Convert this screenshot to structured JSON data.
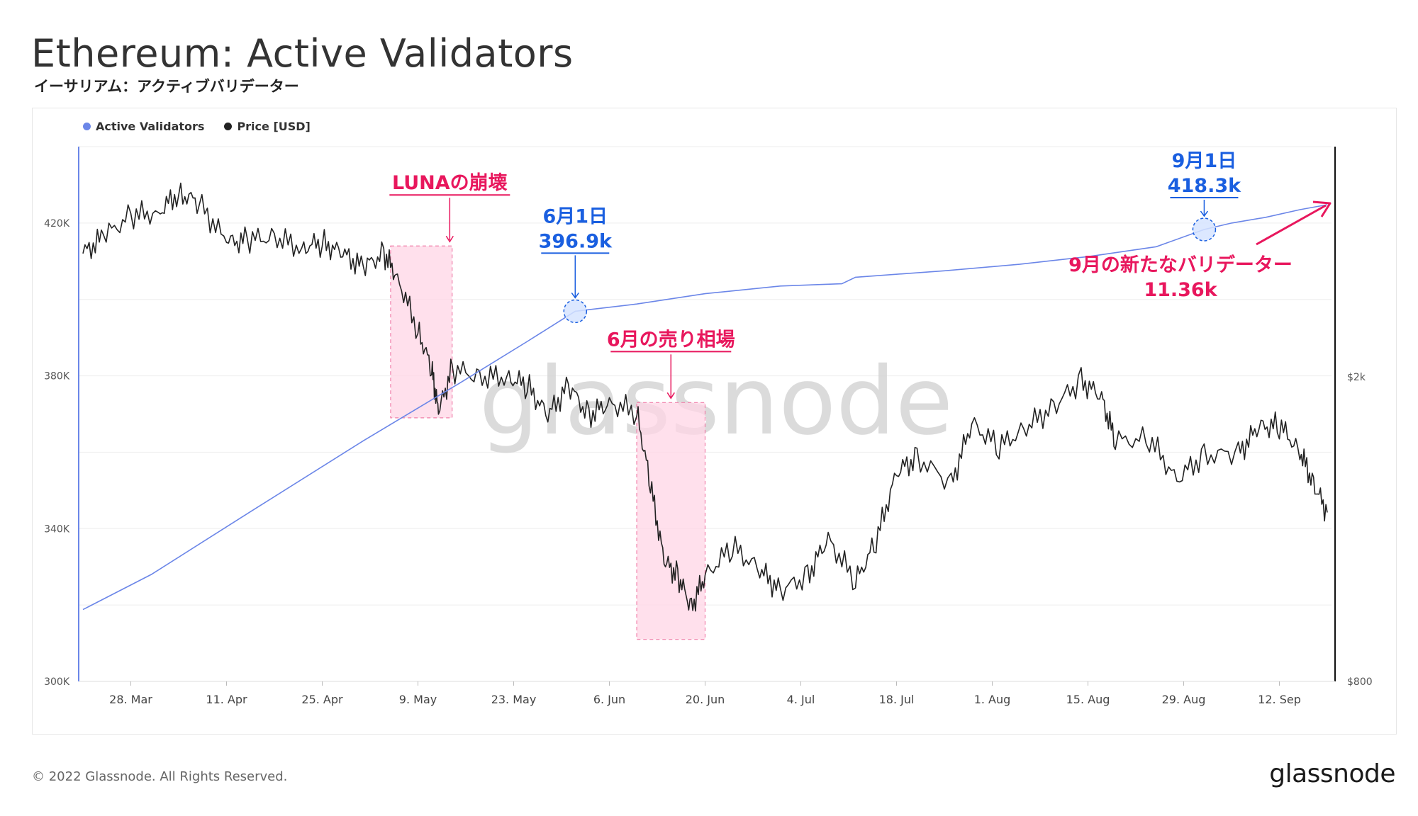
{
  "header": {
    "title": "Ethereum: Active Validators",
    "subtitle": "イーサリアム：アクティブバリデーター"
  },
  "footer": {
    "copyright": "© 2022 Glassnode. All Rights Reserved.",
    "logo": "glassnode"
  },
  "watermark": "glassnode",
  "colors": {
    "validators": "#6b86e8",
    "price": "#222222",
    "highlight_fill": "#ffd6e6",
    "highlight_border": "#f080aa",
    "annotation_pink": "#e8175d",
    "annotation_blue": "#1a5fe0"
  },
  "chart_data": {
    "type": "line",
    "legend": [
      {
        "name": "Active Validators",
        "color": "#6b86e8"
      },
      {
        "name": "Price [USD]",
        "color": "#222222"
      }
    ],
    "x_ticks": [
      "28. Mar",
      "11. Apr",
      "25. Apr",
      "9. May",
      "23. May",
      "6. Jun",
      "20. Jun",
      "4. Jul",
      "18. Jul",
      "1. Aug",
      "15. Aug",
      "29. Aug",
      "12. Sep"
    ],
    "x_range": [
      "2022-03-21",
      "2022-09-19"
    ],
    "y_left": {
      "ticks": [
        "300K",
        "340K",
        "380K",
        "420K"
      ],
      "tick_values": [
        300000,
        340000,
        380000,
        420000
      ],
      "range": [
        300000,
        440000
      ]
    },
    "y_right": {
      "ticks": [
        "$800",
        "$2k"
      ],
      "tick_values": [
        800,
        2000
      ],
      "scale": "log",
      "range": [
        800,
        4000
      ]
    },
    "series": [
      {
        "name": "Active Validators",
        "axis": "left",
        "points": [
          [
            "2022-03-21",
            318800
          ],
          [
            "2022-03-31",
            328000
          ],
          [
            "2022-04-15",
            345000
          ],
          [
            "2022-05-01",
            363000
          ],
          [
            "2022-05-15",
            378000
          ],
          [
            "2022-05-25",
            389000
          ],
          [
            "2022-06-01",
            396900
          ],
          [
            "2022-06-10",
            398800
          ],
          [
            "2022-06-20",
            401500
          ],
          [
            "2022-07-01",
            403500
          ],
          [
            "2022-07-10",
            404100
          ],
          [
            "2022-07-12",
            405800
          ],
          [
            "2022-07-25",
            407500
          ],
          [
            "2022-08-05",
            409200
          ],
          [
            "2022-08-15",
            411200
          ],
          [
            "2022-08-25",
            413800
          ],
          [
            "2022-09-01",
            418300
          ],
          [
            "2022-09-05",
            420000
          ],
          [
            "2022-09-10",
            421500
          ],
          [
            "2022-09-15",
            423500
          ],
          [
            "2022-09-19",
            424800
          ]
        ]
      },
      {
        "name": "Price [USD]",
        "axis": "right",
        "points": [
          [
            "2022-03-21",
            2900
          ],
          [
            "2022-03-24",
            3050
          ],
          [
            "2022-03-28",
            3250
          ],
          [
            "2022-04-01",
            3280
          ],
          [
            "2022-04-04",
            3480
          ],
          [
            "2022-04-07",
            3380
          ],
          [
            "2022-04-11",
            3000
          ],
          [
            "2022-04-14",
            3020
          ],
          [
            "2022-04-18",
            3050
          ],
          [
            "2022-04-22",
            2950
          ],
          [
            "2022-04-25",
            3000
          ],
          [
            "2022-04-28",
            2900
          ],
          [
            "2022-05-01",
            2780
          ],
          [
            "2022-05-04",
            2900
          ],
          [
            "2022-05-06",
            2700
          ],
          [
            "2022-05-09",
            2300
          ],
          [
            "2022-05-11",
            2050
          ],
          [
            "2022-05-12",
            1800
          ],
          [
            "2022-05-14",
            2050
          ],
          [
            "2022-05-18",
            2000
          ],
          [
            "2022-05-22",
            2000
          ],
          [
            "2022-05-25",
            1950
          ],
          [
            "2022-05-28",
            1780
          ],
          [
            "2022-05-31",
            1950
          ],
          [
            "2022-06-03",
            1780
          ],
          [
            "2022-06-06",
            1850
          ],
          [
            "2022-06-10",
            1800
          ],
          [
            "2022-06-12",
            1450
          ],
          [
            "2022-06-14",
            1150
          ],
          [
            "2022-06-16",
            1100
          ],
          [
            "2022-06-18",
            1000
          ],
          [
            "2022-06-20",
            1100
          ],
          [
            "2022-06-24",
            1200
          ],
          [
            "2022-06-28",
            1120
          ],
          [
            "2022-07-01",
            1050
          ],
          [
            "2022-07-05",
            1100
          ],
          [
            "2022-07-08",
            1230
          ],
          [
            "2022-07-12",
            1080
          ],
          [
            "2022-07-15",
            1220
          ],
          [
            "2022-07-18",
            1500
          ],
          [
            "2022-07-21",
            1570
          ],
          [
            "2022-07-26",
            1450
          ],
          [
            "2022-07-29",
            1740
          ],
          [
            "2022-08-02",
            1620
          ],
          [
            "2022-08-06",
            1720
          ],
          [
            "2022-08-10",
            1830
          ],
          [
            "2022-08-14",
            1980
          ],
          [
            "2022-08-17",
            1880
          ],
          [
            "2022-08-19",
            1650
          ],
          [
            "2022-08-24",
            1660
          ],
          [
            "2022-08-28",
            1470
          ],
          [
            "2022-09-01",
            1580
          ],
          [
            "2022-09-06",
            1590
          ],
          [
            "2022-09-09",
            1720
          ],
          [
            "2022-09-12",
            1730
          ],
          [
            "2022-09-15",
            1600
          ],
          [
            "2022-09-17",
            1450
          ],
          [
            "2022-09-19",
            1330
          ]
        ]
      }
    ],
    "highlights": [
      {
        "label": "LUNAの崩壊",
        "from": "2022-05-05",
        "to": "2022-05-14",
        "y_from": 369000,
        "y_to": 414000
      },
      {
        "label": "6月の売り相場",
        "from": "2022-06-10",
        "to": "2022-06-20",
        "y_from": 311000,
        "y_to": 373000
      }
    ],
    "annotations": [
      {
        "date_label": "6月1日",
        "value_label": "396.9k",
        "x": "2022-06-01",
        "y": 396900
      },
      {
        "date_label": "9月1日",
        "value_label": "418.3k",
        "x": "2022-09-01",
        "y": 418300
      }
    ],
    "callout": {
      "line1": "9月の新たなバリデーター",
      "line2": "11.36k"
    },
    "grid": true
  }
}
